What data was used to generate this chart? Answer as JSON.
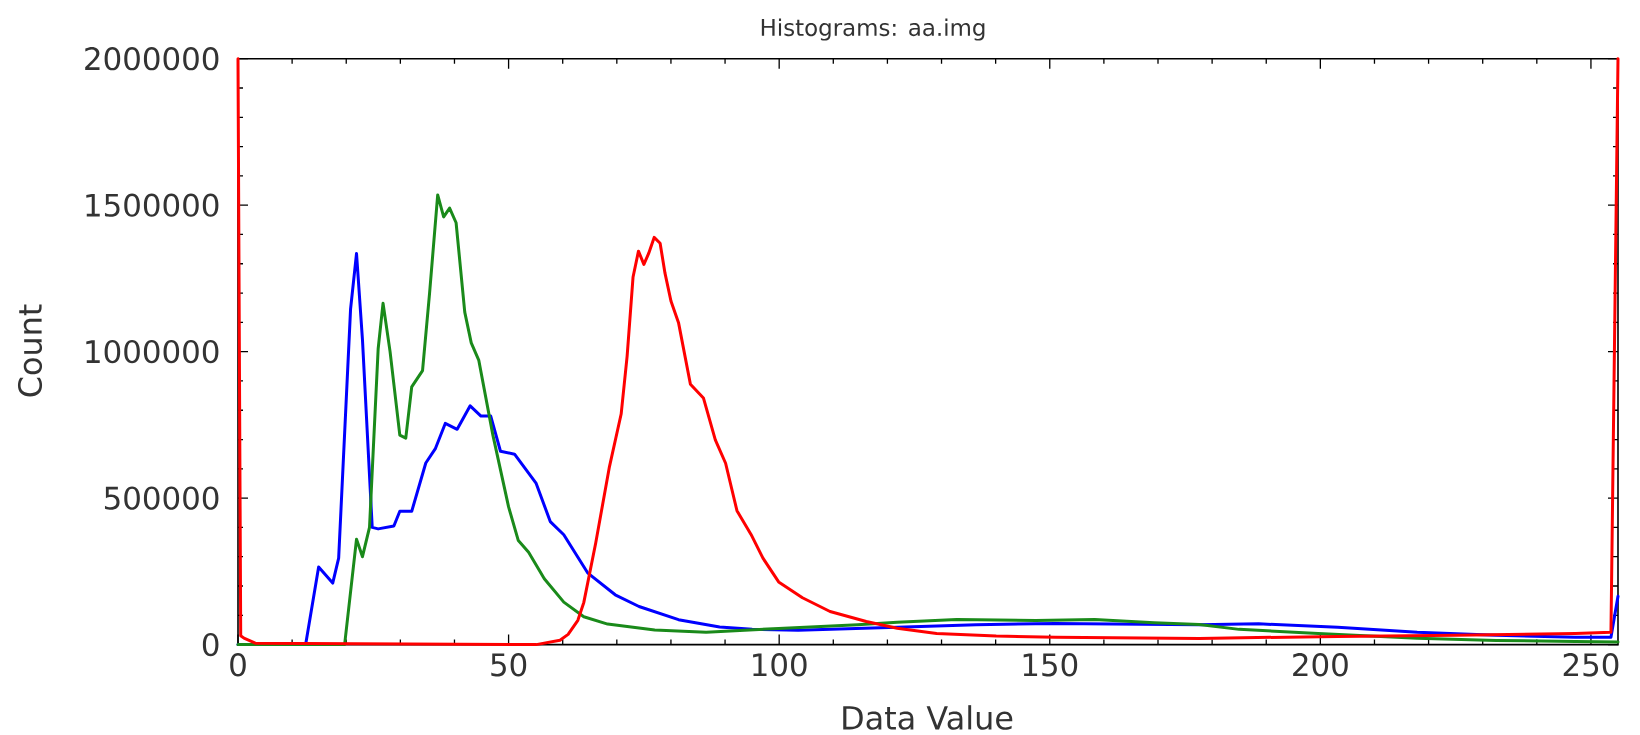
{
  "chart_data": {
    "type": "line",
    "title": "Histograms: aa.img",
    "xlabel": "Data Value",
    "ylabel": "Count",
    "xlim": [
      0,
      255
    ],
    "ylim": [
      0,
      2000000
    ],
    "xticks": [
      0,
      {
        "value": 10,
        "label": null
      },
      {
        "value": 20,
        "label": null
      },
      {
        "value": 30,
        "label": null
      },
      {
        "value": 40,
        "label": null
      },
      50,
      {
        "value": 60,
        "label": null
      },
      {
        "value": 70,
        "label": null
      },
      {
        "value": 80,
        "label": null
      },
      {
        "value": 90,
        "label": null
      },
      100,
      {
        "value": 110,
        "label": null
      },
      {
        "value": 120,
        "label": null
      },
      {
        "value": 130,
        "label": null
      },
      {
        "value": 140,
        "label": null
      },
      150,
      {
        "value": 160,
        "label": null
      },
      {
        "value": 170,
        "label": null
      },
      {
        "value": 180,
        "label": null
      },
      {
        "value": 190,
        "label": null
      },
      200,
      {
        "value": 210,
        "label": null
      },
      {
        "value": 220,
        "label": null
      },
      {
        "value": 230,
        "label": null
      },
      {
        "value": 240,
        "label": null
      },
      250
    ],
    "yticks": [
      0,
      {
        "value": 100000,
        "label": null
      },
      {
        "value": 200000,
        "label": null
      },
      {
        "value": 300000,
        "label": null
      },
      {
        "value": 400000,
        "label": null
      },
      500000,
      {
        "value": 600000,
        "label": null
      },
      {
        "value": 700000,
        "label": null
      },
      {
        "value": 800000,
        "label": null
      },
      {
        "value": 900000,
        "label": null
      },
      1000000,
      {
        "value": 1100000,
        "label": null
      },
      {
        "value": 1200000,
        "label": null
      },
      {
        "value": 1300000,
        "label": null
      },
      {
        "value": 1400000,
        "label": null
      },
      1500000,
      {
        "value": 1600000,
        "label": null
      },
      {
        "value": 1700000,
        "label": null
      },
      {
        "value": 1800000,
        "label": null
      },
      {
        "value": 1900000,
        "label": null
      },
      2000000
    ],
    "line_style": "solid",
    "series": [
      {
        "color": "#0000ff",
        "x": [
          0,
          12.5,
          14.9,
          17.5,
          18.6,
          20.8,
          21.9,
          23.0,
          24.8,
          25.9,
          28.8,
          29.9,
          32.1,
          34.7,
          36.5,
          38.3,
          40.5,
          42.9,
          44.9,
          46.7,
          48.5,
          51.1,
          55.1,
          57.7,
          60.2,
          64.6,
          69.7,
          74.1,
          81.4,
          89.0,
          95,
          103.5,
          121.8,
          136.4,
          151,
          177.6,
          188.6,
          203.2,
          217.9,
          232.5,
          247.1,
          253.7,
          255
        ],
        "values": [
          0,
          0,
          265000,
          210000,
          295000,
          1145000,
          1335000,
          1040000,
          400000,
          395000,
          405000,
          455000,
          455000,
          620000,
          670000,
          755000,
          735000,
          815000,
          780000,
          780000,
          660000,
          650000,
          550000,
          420000,
          375000,
          245000,
          170000,
          130000,
          85000,
          60000,
          52000,
          49000,
          59000,
          68000,
          72000,
          68000,
          71000,
          59000,
          42000,
          32000,
          25000,
          25000,
          165000
        ]
      },
      {
        "color": "#1a8a1a",
        "x": [
          0,
          19.7,
          21.9,
          23.0,
          24.3,
          25.9,
          26.8,
          28.1,
          29.9,
          31.0,
          32.1,
          34.1,
          35.4,
          36.9,
          38.0,
          39.1,
          40.3,
          41.9,
          43.1,
          44.5,
          47.1,
          50.0,
          51.8,
          53.7,
          56.6,
          60.2,
          63.9,
          68.3,
          77.0,
          86.5,
          99.9,
          114.5,
          121.8,
          132.8,
          147.4,
          158.3,
          169.3,
          177.6,
          185,
          199.6,
          217.9,
          232.5,
          247.1,
          255
        ],
        "values": [
          0,
          0,
          360000,
          300000,
          400000,
          1010000,
          1165000,
          1000000,
          715000,
          705000,
          880000,
          935000,
          1200000,
          1535000,
          1460000,
          1490000,
          1440000,
          1135000,
          1030000,
          970000,
          715000,
          470000,
          355000,
          315000,
          225000,
          145000,
          95000,
          70000,
          50000,
          42000,
          55000,
          68000,
          76000,
          86000,
          82000,
          86000,
          75000,
          69000,
          52000,
          38000,
          22000,
          14000,
          11000,
          9000
        ]
      },
      {
        "color": "#ff0000",
        "x": [
          0,
          0.5,
          1.1,
          3.2,
          55.1,
          59.5,
          61.0,
          62.8,
          63.9,
          66.1,
          68.6,
          70.8,
          71.9,
          73.0,
          74.0,
          75.0,
          75.9,
          76.9,
          78.0,
          78.9,
          80.0,
          81.4,
          83.6,
          86.0,
          88.2,
          90.1,
          92.2,
          94.8,
          97.0,
          99.9,
          104.3,
          109.4,
          116.1,
          121.8,
          129.1,
          140.1,
          151,
          177.6,
          203.2,
          225,
          247.1,
          253.7,
          255
        ],
        "values": [
          2000000,
          30000,
          22000,
          5000,
          0,
          15000,
          35000,
          83000,
          144000,
          347000,
          604000,
          787000,
          984000,
          1255000,
          1343000,
          1298000,
          1336000,
          1390000,
          1370000,
          1268000,
          1173000,
          1099000,
          889000,
          842000,
          699000,
          619000,
          457000,
          376000,
          295000,
          214000,
          160000,
          113000,
          79000,
          56000,
          38000,
          29000,
          25000,
          21000,
          28000,
          32000,
          38000,
          42000,
          2000000
        ]
      }
    ]
  }
}
